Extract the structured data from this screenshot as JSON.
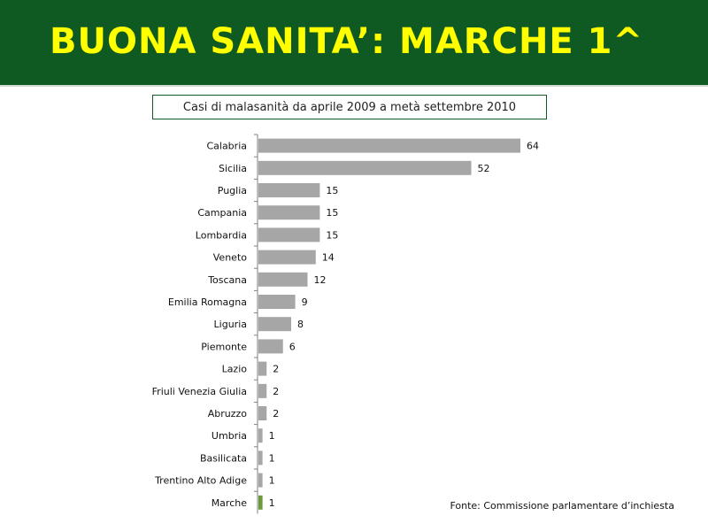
{
  "slide": {
    "title": "BUONA SANITA’: MARCHE 1^",
    "source": "Fonte: Commissione parlamentare d’inchiesta"
  },
  "chart_data": {
    "type": "bar",
    "orientation": "horizontal",
    "title": "Casi di malasanità da aprile 2009 a metà settembre 2010",
    "categories": [
      "Calabria",
      "Sicilia",
      "Puglia",
      "Campania",
      "Lombardia",
      "Veneto",
      "Toscana",
      "Emilia Romagna",
      "Liguria",
      "Piemonte",
      "Lazio",
      "Friuli Venezia Giulia",
      "Abruzzo",
      "Umbria",
      "Basilicata",
      "Trentino Alto Adige",
      "Marche"
    ],
    "values": [
      64,
      52,
      15,
      15,
      15,
      14,
      12,
      9,
      8,
      6,
      2,
      2,
      2,
      1,
      1,
      1,
      1
    ],
    "xlim": [
      0,
      64
    ],
    "grid": false,
    "colors": {
      "bar": "#a6a6a6",
      "highlight": "#6a9a3a",
      "axis": "#7f7f7f"
    },
    "highlight_category": "Marche"
  }
}
